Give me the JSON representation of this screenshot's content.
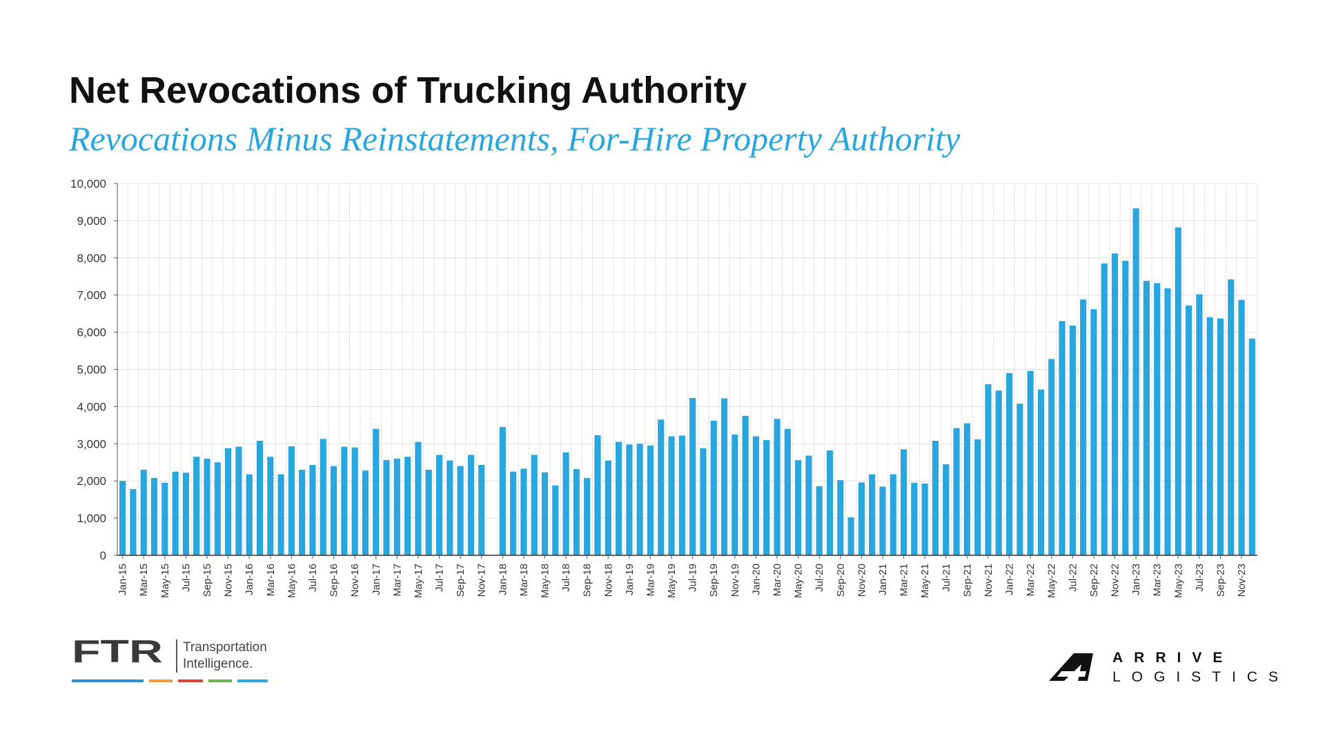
{
  "header": {
    "title": "Net Revocations of Trucking Authority",
    "subtitle": "Revocations Minus Reinstatements, For-Hire Property Authority"
  },
  "chart_data": {
    "type": "bar",
    "title": "Net Revocations of Trucking Authority",
    "subtitle": "Revocations Minus Reinstatements, For-Hire Property Authority",
    "xlabel": "",
    "ylabel": "",
    "ylim": [
      0,
      10000
    ],
    "y_ticks": [
      "0",
      "1,000",
      "2,000",
      "3,000",
      "4,000",
      "5,000",
      "6,000",
      "7,000",
      "8,000",
      "9,000",
      "10,000"
    ],
    "grid": true,
    "bar_color": "#2aa6de",
    "categories": [
      "Jan-15",
      "Feb-15",
      "Mar-15",
      "Apr-15",
      "May-15",
      "Jun-15",
      "Jul-15",
      "Aug-15",
      "Sep-15",
      "Oct-15",
      "Nov-15",
      "Dec-15",
      "Jan-16",
      "Feb-16",
      "Mar-16",
      "Apr-16",
      "May-16",
      "Jun-16",
      "Jul-16",
      "Aug-16",
      "Sep-16",
      "Oct-16",
      "Nov-16",
      "Dec-16",
      "Jan-17",
      "Feb-17",
      "Mar-17",
      "Apr-17",
      "May-17",
      "Jun-17",
      "Jul-17",
      "Aug-17",
      "Sep-17",
      "Oct-17",
      "Nov-17",
      "Dec-17",
      "Jan-18",
      "Feb-18",
      "Mar-18",
      "Apr-18",
      "May-18",
      "Jun-18",
      "Jul-18",
      "Aug-18",
      "Sep-18",
      "Oct-18",
      "Nov-18",
      "Dec-18",
      "Jan-19",
      "Feb-19",
      "Mar-19",
      "Apr-19",
      "May-19",
      "Jun-19",
      "Jul-19",
      "Aug-19",
      "Sep-19",
      "Oct-19",
      "Nov-19",
      "Dec-19",
      "Jan-20",
      "Feb-20",
      "Mar-20",
      "Apr-20",
      "May-20",
      "Jun-20",
      "Jul-20",
      "Aug-20",
      "Sep-20",
      "Oct-20",
      "Nov-20",
      "Dec-20",
      "Jan-21",
      "Feb-21",
      "Mar-21",
      "Apr-21",
      "May-21",
      "Jun-21",
      "Jul-21",
      "Aug-21",
      "Sep-21",
      "Oct-21",
      "Nov-21",
      "Dec-21",
      "Jan-22",
      "Feb-22",
      "Mar-22",
      "Apr-22",
      "May-22",
      "Jun-22",
      "Jul-22",
      "Aug-22",
      "Sep-22",
      "Oct-22",
      "Nov-22",
      "Dec-22",
      "Jan-23",
      "Feb-23",
      "Mar-23",
      "Apr-23",
      "May-23",
      "Jun-23",
      "Jul-23",
      "Aug-23",
      "Sep-23",
      "Oct-23",
      "Nov-23",
      "Dec-23"
    ],
    "x_tick_labels": [
      "Jan-15",
      "Mar-15",
      "May-15",
      "Jul-15",
      "Sep-15",
      "Nov-15",
      "Jan-16",
      "Mar-16",
      "May-16",
      "Jul-16",
      "Sep-16",
      "Nov-16",
      "Jan-17",
      "Mar-17",
      "May-17",
      "Jul-17",
      "Sep-17",
      "Nov-17",
      "Jan-18",
      "Mar-18",
      "May-18",
      "Jul-18",
      "Sep-18",
      "Nov-18",
      "Jan-19",
      "Mar-19",
      "May-19",
      "Jul-19",
      "Sep-19",
      "Nov-19",
      "Jan-20",
      "Mar-20",
      "May-20",
      "Jul-20",
      "Sep-20",
      "Nov-20",
      "Jan-21",
      "Mar-21",
      "May-21",
      "Jul-21",
      "Sep-21",
      "Nov-21",
      "Jan-22",
      "Mar-22",
      "May-22",
      "Jul-22",
      "Sep-22",
      "Nov-22",
      "Jan-23",
      "Mar-23",
      "May-23",
      "Jul-23",
      "Sep-23",
      "Nov-23"
    ],
    "values": [
      2000,
      1780,
      2300,
      2080,
      1950,
      2250,
      2220,
      2650,
      2600,
      2500,
      2880,
      2920,
      2180,
      3080,
      2650,
      2180,
      2930,
      2300,
      2430,
      3130,
      2400,
      2920,
      2900,
      2280,
      3400,
      2560,
      2600,
      2650,
      3050,
      2300,
      2700,
      2550,
      2400,
      2700,
      2430,
      null,
      3450,
      2250,
      2330,
      2700,
      2230,
      1880,
      2770,
      2320,
      2080,
      3230,
      2550,
      3050,
      2980,
      3000,
      2950,
      3650,
      3200,
      3220,
      4230,
      2880,
      3620,
      4220,
      3250,
      3750,
      3200,
      3100,
      3670,
      3400,
      2560,
      2680,
      1860,
      2820,
      2020,
      1020,
      1960,
      2180,
      1850,
      2180,
      2850,
      1950,
      1930,
      3080,
      2450,
      3420,
      3550,
      3120,
      4600,
      4430,
      4900,
      4080,
      4960,
      4460,
      5280,
      6300,
      6180,
      6880,
      6620,
      7850,
      8120,
      7920,
      9330,
      7380,
      7320,
      7180,
      8820,
      6720,
      7020,
      6400,
      6370,
      7420,
      6870,
      5830
    ]
  },
  "footer": {
    "ftr_logo_text": "FTR",
    "ftr_tagline_line1": "Transportation",
    "ftr_tagline_line2": "Intelligence.",
    "ftr_rule_colors": [
      "#2f8fd0",
      "#f29a3a",
      "#e0433a",
      "#6bb24a",
      "#2aa6de"
    ],
    "arrive_line1": "ARRIVE",
    "arrive_line2": "LOGISTICS"
  }
}
